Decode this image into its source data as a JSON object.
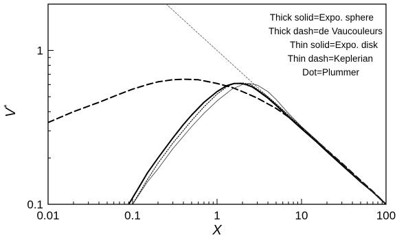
{
  "chart_data": {
    "type": "line",
    "xlabel": "X",
    "ylabel": "V",
    "ylabel_superscript": "*",
    "x_scale": "log",
    "y_scale": "log",
    "xlim": [
      0.01,
      100
    ],
    "ylim": [
      0.1,
      2
    ],
    "x_ticks": [
      {
        "value": 0.01,
        "label": "0.01"
      },
      {
        "value": 0.1,
        "label": "0.1"
      },
      {
        "value": 1,
        "label": "1"
      },
      {
        "value": 10,
        "label": "10"
      },
      {
        "value": 100,
        "label": "100"
      }
    ],
    "y_ticks": [
      {
        "value": 0.1,
        "label": "0.1"
      },
      {
        "value": 1,
        "label": "1"
      }
    ],
    "grid": false,
    "legend_position": "top-right",
    "legend": [
      "Thick solid=Expo. sphere",
      "Thick dash=de Vaucouleurs",
      "Thin solid=Expo. disk",
      "Thin dash=Keplerian",
      "Dot=Plummer"
    ],
    "series": [
      {
        "key": "expo-sphere",
        "style": "thick-solid",
        "x": [
          0.09,
          0.12,
          0.15,
          0.2,
          0.3,
          0.4,
          0.5,
          0.7,
          1.0,
          1.3,
          1.6,
          1.9,
          2.2,
          2.6,
          3,
          4,
          5,
          7,
          10,
          15,
          20,
          30,
          50,
          70,
          100
        ],
        "y": [
          0.1,
          0.13,
          0.16,
          0.2,
          0.27,
          0.33,
          0.38,
          0.46,
          0.54,
          0.59,
          0.61,
          0.61,
          0.6,
          0.58,
          0.55,
          0.49,
          0.44,
          0.37,
          0.31,
          0.255,
          0.22,
          0.18,
          0.14,
          0.12,
          0.1
        ]
      },
      {
        "key": "de-vaucouleurs",
        "style": "thick-dash",
        "x": [
          0.01,
          0.02,
          0.04,
          0.07,
          0.1,
          0.15,
          0.2,
          0.3,
          0.4,
          0.6,
          1.0,
          1.5,
          2,
          3,
          5,
          7,
          10,
          15,
          20,
          30,
          50,
          70,
          100
        ],
        "y": [
          0.34,
          0.4,
          0.46,
          0.52,
          0.56,
          0.6,
          0.625,
          0.645,
          0.65,
          0.645,
          0.61,
          0.575,
          0.54,
          0.49,
          0.42,
          0.37,
          0.315,
          0.26,
          0.225,
          0.185,
          0.143,
          0.121,
          0.1
        ]
      },
      {
        "key": "expo-disk",
        "style": "thin-solid",
        "x": [
          0.1,
          0.15,
          0.2,
          0.3,
          0.5,
          0.7,
          1.0,
          1.5,
          2.0,
          2.4,
          3,
          4,
          5,
          7,
          10,
          15,
          20,
          30,
          50,
          70,
          100
        ],
        "y": [
          0.1,
          0.14,
          0.17,
          0.23,
          0.32,
          0.39,
          0.47,
          0.56,
          0.6,
          0.61,
          0.595,
          0.54,
          0.48,
          0.39,
          0.32,
          0.262,
          0.225,
          0.184,
          0.142,
          0.12,
          0.1
        ]
      },
      {
        "key": "keplerian",
        "style": "thin-dash",
        "x": [
          0.25,
          0.4,
          0.6,
          1,
          2,
          3,
          5,
          10,
          20,
          50,
          100
        ],
        "y": [
          2,
          1.58,
          1.29,
          1,
          0.707,
          0.577,
          0.447,
          0.316,
          0.224,
          0.141,
          0.1
        ]
      },
      {
        "key": "plummer",
        "style": "dot",
        "x": [
          0.1,
          0.15,
          0.2,
          0.3,
          0.5,
          0.7,
          1.0,
          1.3,
          1.6,
          2.0,
          2.5,
          3,
          4,
          5,
          7,
          10,
          15,
          20,
          30,
          50,
          70,
          100
        ],
        "y": [
          0.1,
          0.145,
          0.185,
          0.25,
          0.35,
          0.43,
          0.52,
          0.58,
          0.61,
          0.615,
          0.6,
          0.56,
          0.5,
          0.45,
          0.38,
          0.318,
          0.259,
          0.224,
          0.183,
          0.142,
          0.12,
          0.1
        ]
      }
    ]
  }
}
